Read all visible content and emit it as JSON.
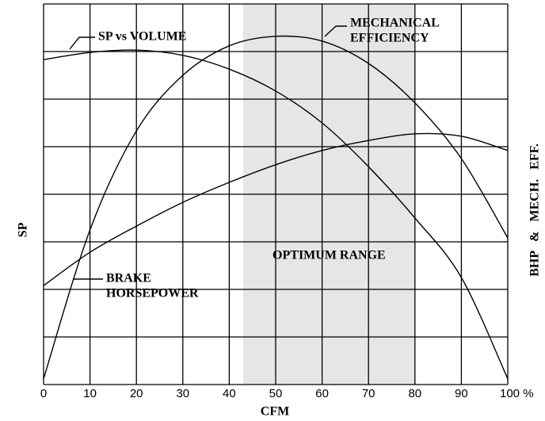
{
  "chart_data": {
    "type": "line",
    "x_label": "CFM",
    "y_label": "SP",
    "y2_label": "BHP & MECH. EFF.",
    "x": [
      0,
      10,
      20,
      30,
      40,
      50,
      60,
      70,
      80,
      90,
      100
    ],
    "series": [
      {
        "label_lines": [
          "SP vs VOLUME"
        ],
        "color": "#000000",
        "values": [
          6.83,
          6.98,
          7.03,
          6.92,
          6.63,
          6.17,
          5.5,
          4.58,
          3.5,
          2.25,
          0.12
        ]
      },
      {
        "label_lines": [
          "MECHANICAL",
          "EFFICIENCY"
        ],
        "color": "#000000",
        "axis": "y2",
        "values": [
          0.12,
          3.25,
          5.33,
          6.5,
          7.12,
          7.32,
          7.22,
          6.75,
          5.92,
          4.75,
          3.08
        ]
      },
      {
        "label_lines": [
          "BRAKE",
          "HORSEPOWER"
        ],
        "color": "#000000",
        "axis": "y2",
        "values": [
          2.08,
          2.78,
          3.33,
          3.83,
          4.25,
          4.62,
          4.92,
          5.13,
          5.27,
          5.22,
          4.92
        ]
      }
    ],
    "shaded_range": {
      "label": "OPTIMUM RANGE",
      "x": [
        43,
        80
      ],
      "color": "#e6e6e6"
    },
    "xlim": [
      0,
      100
    ],
    "xticks": [
      0,
      10,
      20,
      30,
      40,
      50,
      60,
      70,
      80,
      90,
      {
        "value": 100,
        "label": "100 %"
      }
    ],
    "ylim": [
      0,
      8
    ],
    "ygrid": [
      0,
      1,
      2,
      3,
      4,
      5,
      6,
      7,
      8
    ],
    "y2lim": [
      0,
      8
    ],
    "grid": true
  }
}
